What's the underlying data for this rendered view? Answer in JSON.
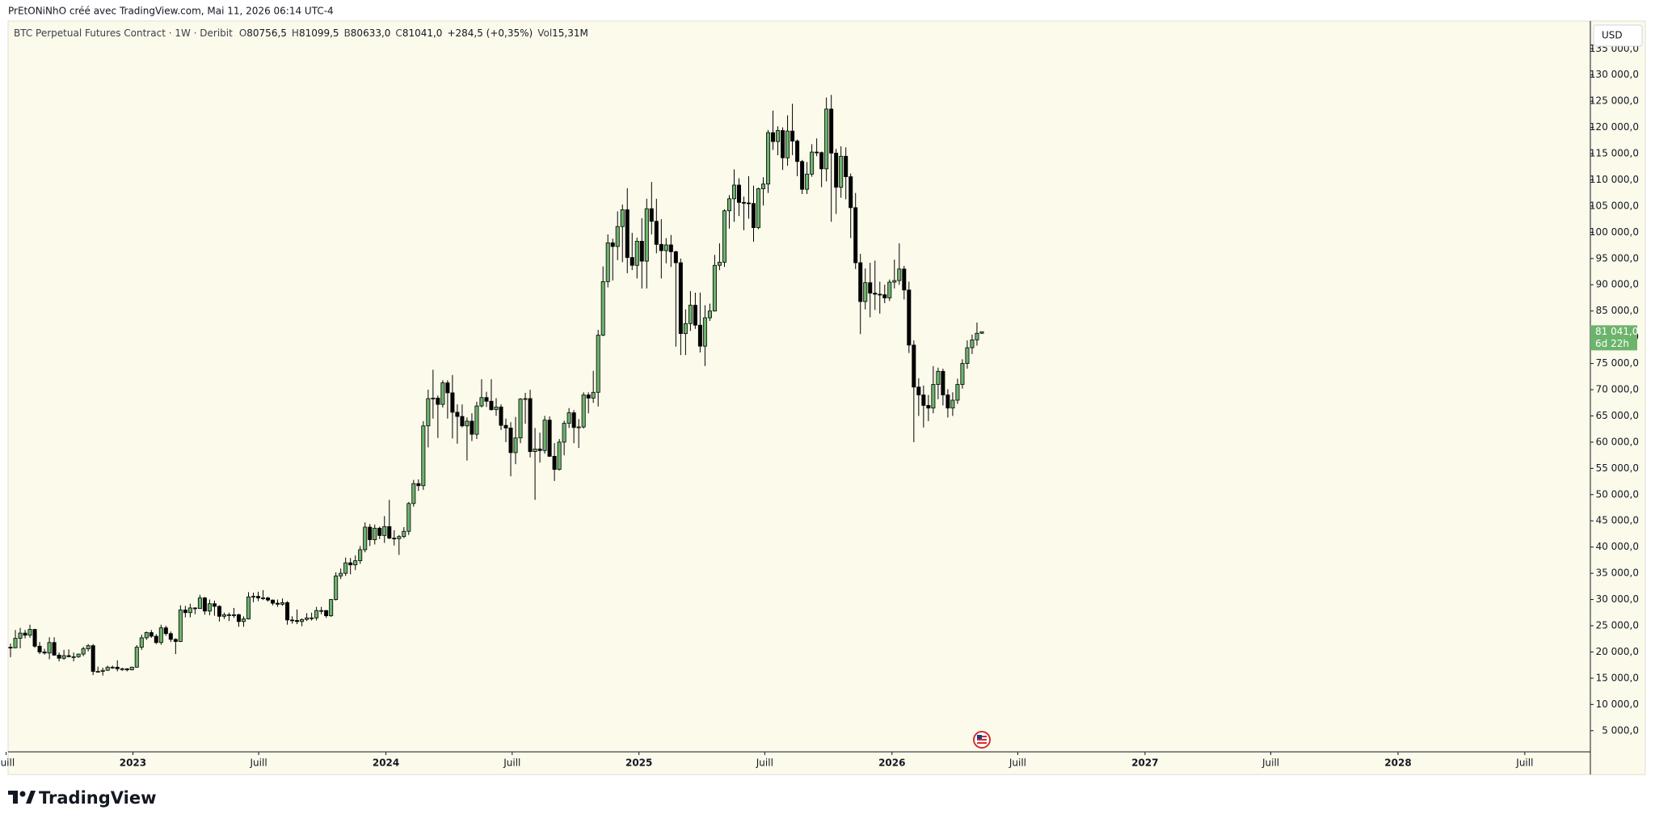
{
  "header": "PrEtONiNhO créé avec TradingView.com, Mai 11, 2026 06:14 UTC-4",
  "footer": {
    "brand": "TradingView"
  },
  "chart_data": {
    "type": "candlestick",
    "legend": {
      "title": "BTC Perpetual Futures Contract · 1W · Deribit",
      "fields": [
        {
          "key": "O",
          "value": "80756,5"
        },
        {
          "key": "H",
          "value": "81099,5"
        },
        {
          "key": "B",
          "value": "80633,0"
        },
        {
          "key": "C",
          "value": "81041,0"
        }
      ],
      "change": "+284,5 (+0,35%)",
      "volume": {
        "key": "Vol",
        "value": "15,31M"
      }
    },
    "currency": "USD",
    "up_color": "#6cb46c",
    "down_color": "#000000",
    "border_color": "#000000",
    "background": "#fcfaeb",
    "grid": false,
    "open": [
      20900,
      20800,
      22600,
      23600,
      23200,
      24300,
      21100,
      20000,
      19800,
      21800,
      19400,
      18800,
      19300,
      19100,
      19100,
      19600,
      20600,
      21200,
      16300,
      16300,
      16500,
      17100,
      17100,
      16800,
      16800,
      16600,
      17100,
      20900,
      22700,
      23700,
      23000,
      21800,
      24600,
      23500,
      22400,
      22000,
      28000,
      27500,
      28400,
      28300,
      30300,
      27800,
      29200,
      28700,
      26800,
      27100,
      27100,
      27100,
      25800,
      26300,
      30500,
      30600,
      30300,
      30300,
      29900,
      29300,
      29100,
      29400,
      26100,
      26000,
      25800,
      26200,
      26500,
      26500,
      27900,
      27900,
      26900,
      30000,
      34500,
      35000,
      37000,
      36600,
      37400,
      39500,
      43800,
      41400,
      43600,
      42200,
      43900,
      41700,
      41600,
      42000,
      43000,
      48300,
      52100,
      51700,
      63100,
      68300,
      68400,
      67200,
      71300,
      69400,
      65700,
      64900,
      63100,
      64000,
      61500,
      66900,
      68500,
      67800,
      66200,
      66700,
      63200,
      62700,
      58000,
      60800,
      68200,
      68300,
      58200,
      58700,
      58400,
      64200,
      57300,
      54800,
      60000,
      63600,
      65600,
      62800,
      62900,
      69000,
      68400,
      69500,
      80400,
      90600,
      98000,
      97300,
      101100,
      104300,
      95200,
      93700,
      98300,
      94500,
      104500,
      102100,
      97700,
      96500,
      97600,
      96300,
      94200,
      80700,
      82600,
      86100,
      82300,
      78300,
      83700,
      85000,
      93700,
      94300,
      104100,
      106400,
      109000,
      105700,
      105600,
      105500,
      100900,
      108300,
      109200,
      119000,
      117300,
      119400,
      114200,
      119300,
      117400,
      113500,
      108200,
      111100,
      115300,
      115200,
      112100,
      123500,
      115100,
      108600,
      114500,
      110600,
      104700,
      94200,
      86800,
      90400,
      88400,
      88200,
      88100,
      87500,
      90500,
      90800,
      93000,
      89000,
      78500,
      70500,
      69000,
      67000,
      66500,
      71000,
      73500,
      69000,
      66500,
      68000,
      71000,
      75000,
      78000,
      79500,
      80756.5
    ],
    "high": [
      21600,
      24200,
      24600,
      24200,
      25200,
      24400,
      21900,
      20600,
      22800,
      22800,
      19900,
      20400,
      20500,
      19900,
      19700,
      21000,
      21500,
      21500,
      17200,
      17000,
      17400,
      17400,
      18400,
      17000,
      16900,
      17200,
      21300,
      23300,
      23900,
      24200,
      23400,
      25200,
      25000,
      23900,
      22600,
      28900,
      28800,
      29200,
      28500,
      30900,
      30500,
      30000,
      29800,
      28900,
      27500,
      27500,
      28400,
      27300,
      26800,
      31400,
      31300,
      31500,
      31800,
      30500,
      30000,
      30000,
      30200,
      29700,
      26800,
      28100,
      26400,
      27400,
      27500,
      28600,
      28600,
      28000,
      30100,
      35200,
      35900,
      38000,
      37900,
      38400,
      40200,
      44700,
      44400,
      44300,
      43900,
      45900,
      49000,
      43200,
      42300,
      43800,
      48600,
      52800,
      52900,
      64000,
      70000,
      73800,
      68900,
      71800,
      71800,
      72800,
      67200,
      67200,
      64700,
      65500,
      67700,
      72000,
      69600,
      72000,
      68400,
      67200,
      64500,
      63800,
      64800,
      68400,
      69400,
      70000,
      62700,
      61800,
      65000,
      64900,
      59800,
      60600,
      64100,
      66500,
      66100,
      64400,
      69500,
      69500,
      73600,
      81400,
      93500,
      99600,
      98800,
      104000,
      105300,
      108400,
      99900,
      99000,
      102700,
      106400,
      109600,
      106400,
      102500,
      98900,
      99500,
      96500,
      95000,
      85300,
      88800,
      88500,
      88500,
      86100,
      86400,
      95700,
      97900,
      104400,
      107100,
      112000,
      110300,
      106800,
      110700,
      108900,
      108500,
      110500,
      119500,
      123200,
      120200,
      120000,
      122300,
      124500,
      117700,
      113800,
      113400,
      116800,
      117900,
      115400,
      125700,
      126200,
      115900,
      116400,
      116200,
      111200,
      107500,
      95900,
      93100,
      94200,
      94600,
      90600,
      90000,
      91000,
      94800,
      97900,
      93600,
      90600,
      79400,
      72200,
      70800,
      69000,
      74500,
      74200,
      74000,
      70100,
      69500,
      72100,
      75800,
      79400,
      80500,
      82800,
      81099.5
    ],
    "low": [
      19000,
      20700,
      20700,
      22600,
      22700,
      20800,
      19600,
      19500,
      18600,
      19300,
      18200,
      18500,
      19000,
      18200,
      18900,
      19200,
      20100,
      15600,
      16200,
      15500,
      16400,
      16800,
      16300,
      16400,
      16300,
      16500,
      17000,
      20400,
      22300,
      22700,
      21500,
      21400,
      23100,
      21900,
      19600,
      21900,
      26600,
      26600,
      27200,
      28200,
      27100,
      27000,
      26900,
      25800,
      26300,
      25900,
      26500,
      24800,
      24800,
      26200,
      29500,
      29700,
      29900,
      29600,
      28900,
      28600,
      28800,
      25200,
      25400,
      25300,
      24900,
      25900,
      26000,
      26000,
      27200,
      26500,
      26700,
      29800,
      33900,
      34500,
      34800,
      35600,
      36800,
      39000,
      40200,
      40500,
      41500,
      40800,
      41500,
      40300,
      38500,
      41700,
      42300,
      47700,
      50700,
      50900,
      59000,
      64500,
      60800,
      66600,
      64500,
      60700,
      59700,
      62800,
      56500,
      60200,
      60600,
      66600,
      66700,
      66000,
      65000,
      62300,
      60000,
      53500,
      55800,
      59800,
      63500,
      57100,
      49000,
      56100,
      57800,
      57200,
      52600,
      54600,
      57500,
      62700,
      59800,
      58900,
      62600,
      65500,
      67500,
      66800,
      80200,
      89500,
      90800,
      94700,
      94300,
      92200,
      92800,
      91200,
      89300,
      89300,
      99600,
      96000,
      91200,
      94100,
      93400,
      78200,
      76600,
      76600,
      81200,
      81600,
      77100,
      74500,
      83100,
      84900,
      92800,
      93400,
      100700,
      102000,
      103100,
      100400,
      102600,
      98200,
      100600,
      105100,
      107500,
      115700,
      114700,
      111900,
      112700,
      114700,
      110700,
      107300,
      107300,
      110600,
      114500,
      108600,
      109700,
      102000,
      103500,
      106600,
      106300,
      98900,
      93000,
      80600,
      85300,
      83800,
      85200,
      84500,
      86500,
      86900,
      89300,
      90000,
      87200,
      77000,
      60000,
      65000,
      62800,
      64000,
      65500,
      68200,
      67000,
      64700,
      65000,
      67300,
      70200,
      74000,
      76800,
      78400,
      80633
    ],
    "close": [
      20800,
      22600,
      23600,
      23200,
      24300,
      21100,
      20000,
      19800,
      21800,
      19400,
      18800,
      19300,
      19100,
      19100,
      19600,
      20600,
      21200,
      16300,
      16300,
      16500,
      17100,
      17100,
      16800,
      16800,
      16600,
      17100,
      20900,
      22700,
      23700,
      23000,
      21800,
      24600,
      23500,
      22400,
      22000,
      28000,
      27500,
      28400,
      28300,
      30300,
      27800,
      29200,
      28700,
      26800,
      27100,
      27100,
      27100,
      25800,
      26300,
      30500,
      30600,
      30300,
      30300,
      29900,
      29300,
      29100,
      29400,
      26100,
      26000,
      25800,
      26200,
      26500,
      26500,
      27900,
      27900,
      26900,
      30000,
      34500,
      35000,
      37000,
      36600,
      37400,
      39500,
      43800,
      41400,
      43600,
      42200,
      43900,
      41700,
      41600,
      42000,
      43000,
      48300,
      52100,
      51700,
      63100,
      68300,
      68400,
      67200,
      71300,
      69400,
      65700,
      64900,
      63100,
      64000,
      61500,
      66900,
      68500,
      67800,
      66200,
      66700,
      63200,
      62700,
      58000,
      60800,
      68200,
      68300,
      58200,
      58700,
      58400,
      64200,
      57300,
      54800,
      60000,
      63600,
      65600,
      62800,
      62900,
      69000,
      68400,
      69500,
      80400,
      90600,
      98000,
      97300,
      101100,
      104300,
      95200,
      93700,
      98300,
      94500,
      104500,
      102100,
      97700,
      96500,
      97600,
      96300,
      94200,
      80700,
      82600,
      86100,
      82300,
      78300,
      83700,
      85000,
      93700,
      94300,
      104100,
      106400,
      109000,
      105700,
      105600,
      105500,
      100900,
      108300,
      109200,
      119000,
      117300,
      119400,
      114200,
      119300,
      117400,
      113500,
      108200,
      111100,
      115300,
      115200,
      112100,
      123500,
      115100,
      108600,
      114500,
      110600,
      104700,
      94200,
      86800,
      90400,
      88400,
      88200,
      88100,
      87500,
      90500,
      90800,
      93000,
      89000,
      78500,
      70500,
      69000,
      67000,
      66500,
      71000,
      73500,
      69000,
      66500,
      68000,
      71000,
      75000,
      78000,
      79500,
      80756.5,
      81041
    ],
    "xlim": [
      -0.5,
      325.3
    ],
    "xticks": [
      {
        "value": -0.9,
        "label": "Juill"
      },
      {
        "value": 25.2,
        "label": "2023"
      },
      {
        "value": 51.1,
        "label": "Juill"
      },
      {
        "value": 77.3,
        "label": "2024"
      },
      {
        "value": 103.3,
        "label": "Juill"
      },
      {
        "value": 129.4,
        "label": "2025"
      },
      {
        "value": 155.3,
        "label": "Juill"
      },
      {
        "value": 181.5,
        "label": "2026"
      },
      {
        "value": 207.4,
        "label": "Juill"
      },
      {
        "value": 233.6,
        "label": "2027"
      },
      {
        "value": 259.5,
        "label": "Juill"
      },
      {
        "value": 285.7,
        "label": "2028"
      },
      {
        "value": 311.8,
        "label": "Juill"
      }
    ],
    "ylim": [
      960,
      140280
    ],
    "yticks": [
      {
        "value": 5000,
        "label": "5 000,0"
      },
      {
        "value": 10000,
        "label": "10 000,0"
      },
      {
        "value": 15000,
        "label": "15 000,0"
      },
      {
        "value": 20000,
        "label": "20 000,0"
      },
      {
        "value": 25000,
        "label": "25 000,0"
      },
      {
        "value": 30000,
        "label": "30 000,0"
      },
      {
        "value": 35000,
        "label": "35 000,0"
      },
      {
        "value": 40000,
        "label": "40 000,0"
      },
      {
        "value": 45000,
        "label": "45 000,0"
      },
      {
        "value": 50000,
        "label": "50 000,0"
      },
      {
        "value": 55000,
        "label": "55 000,0"
      },
      {
        "value": 60000,
        "label": "60 000,0"
      },
      {
        "value": 65000,
        "label": "65 000,0"
      },
      {
        "value": 70000,
        "label": "70 000,0"
      },
      {
        "value": 75000,
        "label": "75 000,0"
      },
      {
        "value": 80000,
        "label": "80 000,0"
      },
      {
        "value": 85000,
        "label": "85 000,0"
      },
      {
        "value": 90000,
        "label": "90 000,0"
      },
      {
        "value": 95000,
        "label": "95 000,0"
      },
      {
        "value": 100000,
        "label": "100 000,0"
      },
      {
        "value": 105000,
        "label": "105 000,0"
      },
      {
        "value": 110000,
        "label": "110 000,0"
      },
      {
        "value": 115000,
        "label": "115 000,0"
      },
      {
        "value": 120000,
        "label": "120 000,0"
      },
      {
        "value": 125000,
        "label": "125 000,0"
      },
      {
        "value": 130000,
        "label": "130 000,0"
      },
      {
        "value": 135000,
        "label": "135 000,0"
      }
    ],
    "last_price": {
      "value": 81041,
      "label": "81 041,0"
    },
    "countdown": "6d 22h"
  }
}
